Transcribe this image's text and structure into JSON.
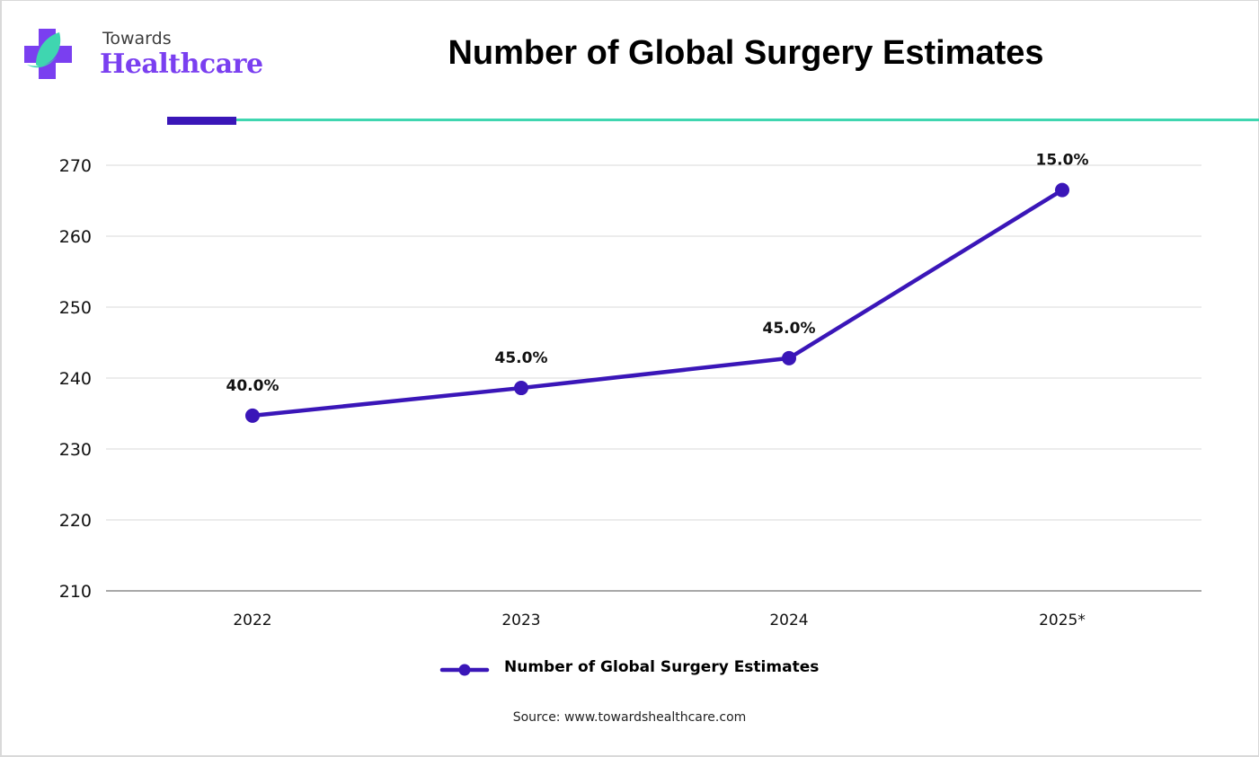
{
  "brand": {
    "name_top": "Towards",
    "name_bottom": "Healthcare",
    "logo_icon": "medical-cross-leaf-icon",
    "colors": {
      "primary": "#7a3ff0",
      "accent": "#3fd6b0",
      "dark": "#3a16b8"
    }
  },
  "footer": {
    "source": "Source: www.towardshealthcare.com"
  },
  "chart_data": {
    "type": "line",
    "title": "Number of Global Surgery Estimates",
    "xlabel": "",
    "ylabel": "",
    "categories": [
      "2022",
      "2023",
      "2024",
      "2025*"
    ],
    "series": [
      {
        "name": "Number of Global Surgery Estimates",
        "color": "#3a16b8",
        "values": [
          234.7,
          238.6,
          242.8,
          266.5
        ],
        "data_labels": [
          "40.0%",
          "45.0%",
          "45.0%",
          "15.0%"
        ]
      }
    ],
    "ylim": [
      210,
      270
    ],
    "yticks": [
      210,
      220,
      230,
      240,
      250,
      260,
      270
    ],
    "ytick_labels": [
      "210",
      "220",
      "230",
      "240",
      "250",
      "260",
      "270"
    ],
    "grid": true,
    "legend": "bottom-center"
  }
}
